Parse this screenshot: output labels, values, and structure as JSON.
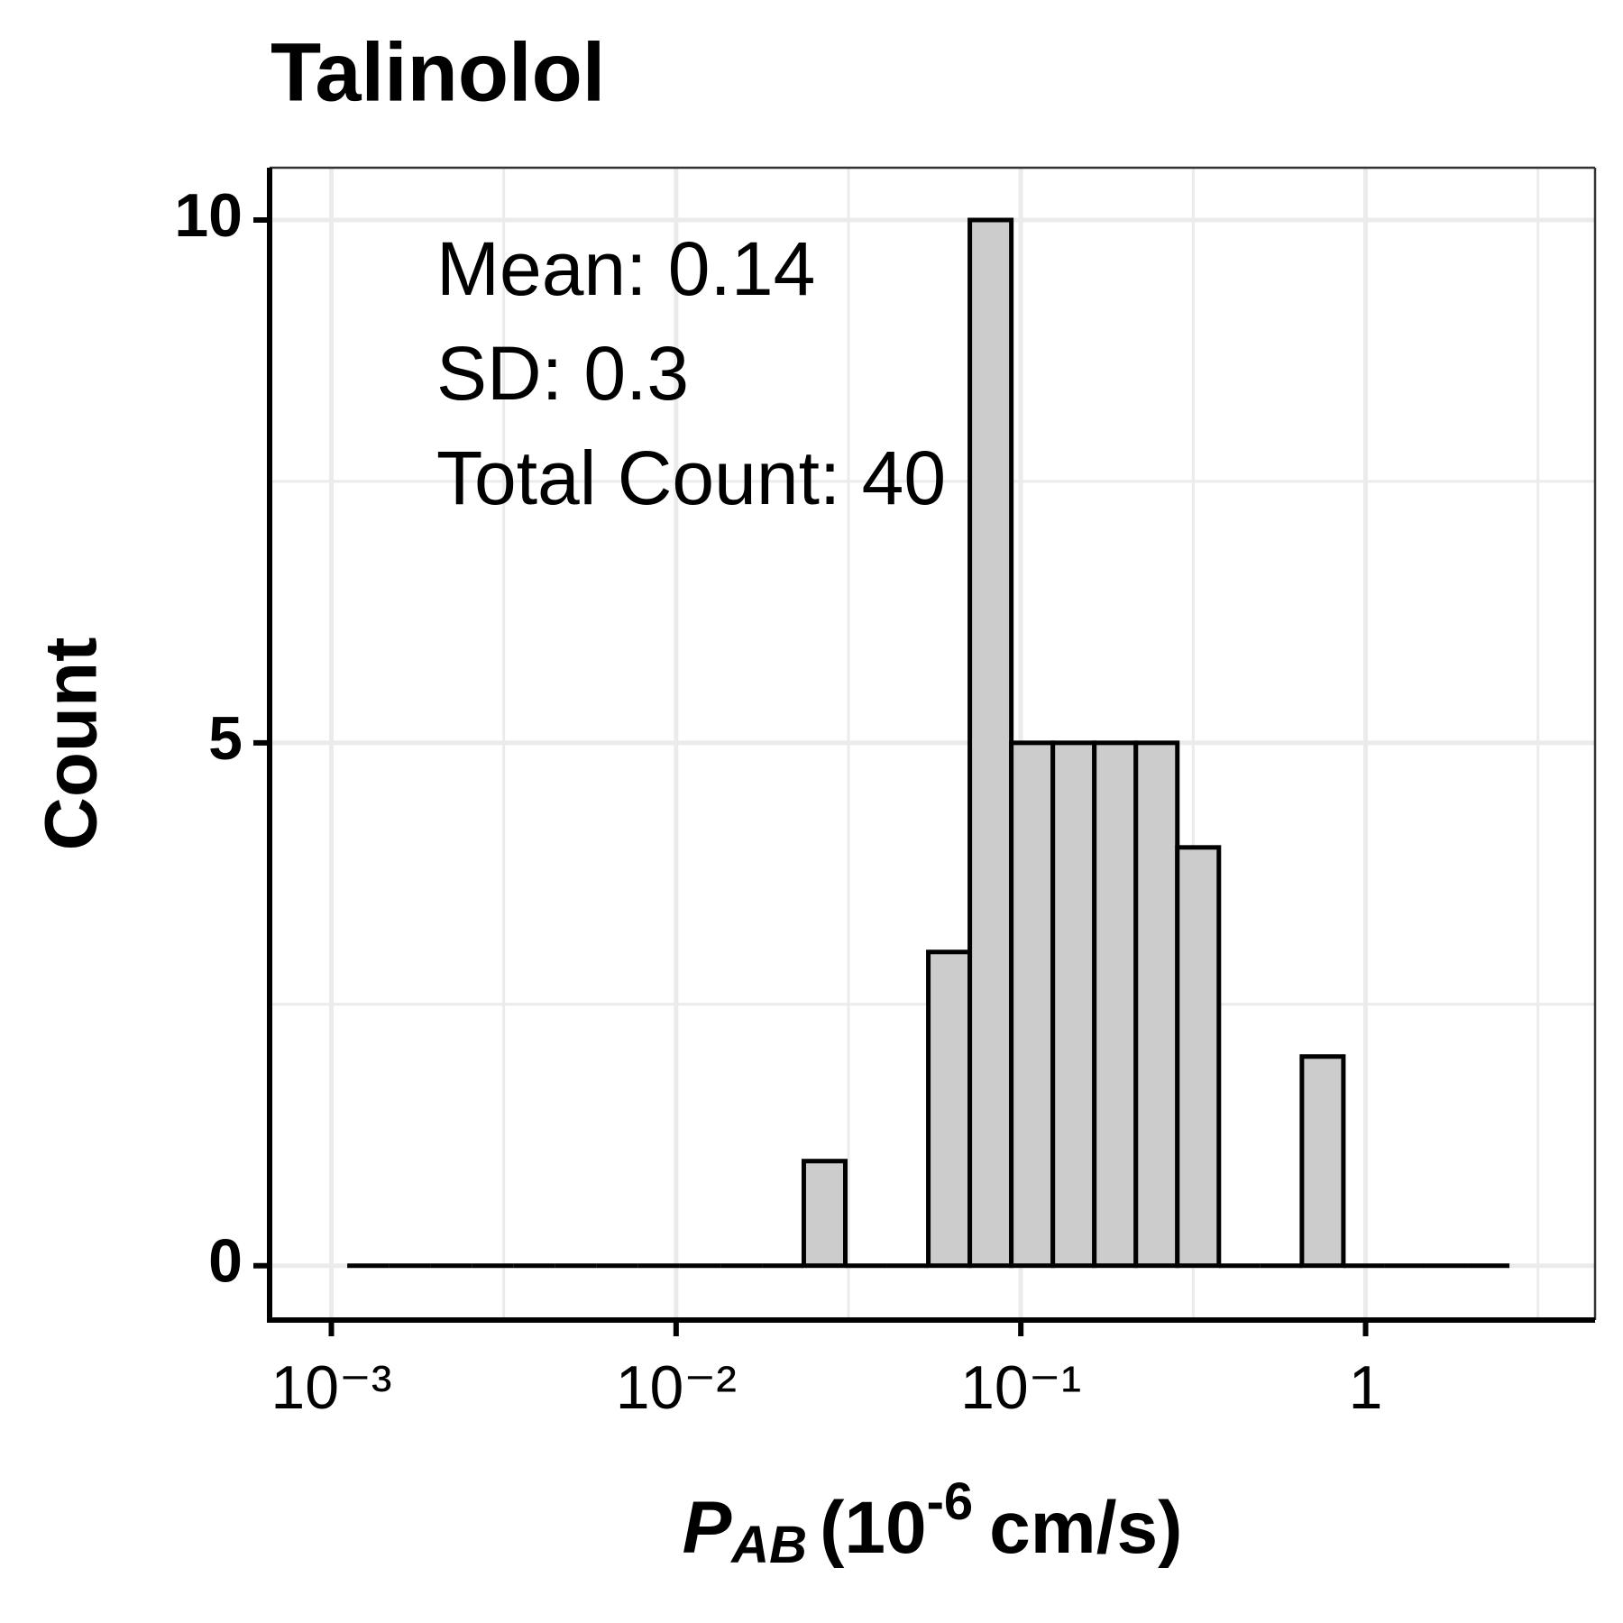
{
  "chart_data": {
    "type": "histogram",
    "title": "Talinolol",
    "x_label": {
      "symbol": "P",
      "subscript": "AB",
      "text": "(10",
      "superscript": "-6",
      "unit": "cm/s)"
    },
    "y_label": "Count",
    "annotations": [
      "Mean: 0.14",
      "SD: 0.3",
      "Total Count: 40"
    ],
    "bins": [
      0.001112,
      0.001467,
      0.001935,
      0.002554,
      0.00337,
      0.004446,
      0.005867,
      0.007741,
      0.010214,
      0.013477,
      0.017783,
      0.023465,
      0.030961,
      0.040853,
      0.053905,
      0.071121,
      0.093847,
      0.12383,
      0.16339,
      0.2156,
      0.28445,
      0.37533,
      0.49523,
      0.65344,
      0.86222,
      1.1376,
      1.5011,
      1.981,
      2.6139
    ],
    "values": [
      0,
      0,
      0,
      0,
      0,
      0,
      0,
      0,
      0,
      0,
      0,
      1,
      0,
      0,
      3,
      10,
      5,
      5,
      5,
      5,
      4,
      0,
      0,
      2,
      0,
      0,
      0,
      0
    ],
    "color": "#cccccc",
    "edge_color": "#000000",
    "xscale": "log",
    "xlim": [
      0.000662,
      4.63
    ],
    "ylim": [
      -0.52,
      10.5
    ],
    "xticks": [
      {
        "value": 0.001,
        "label": "10⁻³"
      },
      {
        "value": 0.01,
        "label": "10⁻²"
      },
      {
        "value": 0.1,
        "label": "10⁻¹"
      },
      1
    ],
    "yticks": [
      0,
      5,
      10
    ],
    "grid": true
  }
}
